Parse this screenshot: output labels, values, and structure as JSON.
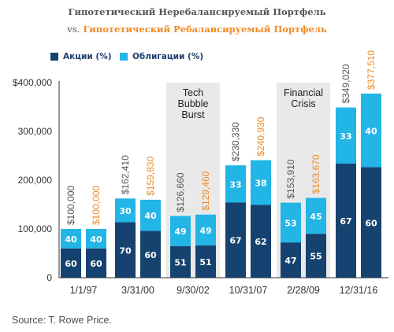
{
  "title_line1": "Гипотетический Неребалансируемый Портфель",
  "title_vs": "vs.",
  "title_line2": "Гипотетический Ребалансируемый Портфель",
  "source": "Source: T. Rowe Price.",
  "colors": {
    "stocks": "#16426f",
    "bonds": "#22b5e6",
    "orange": "#f08a24",
    "gray_value": "#555555",
    "band": "#e9e9e9"
  },
  "chart_data": {
    "type": "bar",
    "stacked": true,
    "categories": [
      "1/1/97",
      "3/31/00",
      "9/30/02",
      "10/31/07",
      "2/28/09",
      "12/31/16"
    ],
    "series": [
      {
        "name": "Акции (%)",
        "key": "stocks"
      },
      {
        "name": "Облигации (%)",
        "key": "bonds"
      }
    ],
    "y_ticks": [
      "$400,000",
      "300,000",
      "200,000",
      "100,000",
      "0"
    ],
    "ylim": [
      0,
      400000
    ],
    "groups": [
      {
        "category": "1/1/97",
        "nonrebalanced": {
          "total": 100000,
          "label": "$100,000",
          "stocks": 60,
          "bonds": 40
        },
        "rebalanced": {
          "total": 100000,
          "label": "$100,000",
          "stocks": 60,
          "bonds": 40
        }
      },
      {
        "category": "3/31/00",
        "nonrebalanced": {
          "total": 162410,
          "label": "$162,410",
          "stocks": 70,
          "bonds": 30
        },
        "rebalanced": {
          "total": 159830,
          "label": "$159,830",
          "stocks": 60,
          "bonds": 40
        }
      },
      {
        "category": "9/30/02",
        "nonrebalanced": {
          "total": 126660,
          "label": "$126,660",
          "stocks": 51,
          "bonds": 49
        },
        "rebalanced": {
          "total": 129460,
          "label": "$129,460",
          "stocks": 51,
          "bonds": 49
        }
      },
      {
        "category": "10/31/07",
        "nonrebalanced": {
          "total": 230330,
          "label": "$230,330",
          "stocks": 67,
          "bonds": 33
        },
        "rebalanced": {
          "total": 240930,
          "label": "$240,930",
          "stocks": 62,
          "bonds": 38
        }
      },
      {
        "category": "2/28/09",
        "nonrebalanced": {
          "total": 153910,
          "label": "$153,910",
          "stocks": 47,
          "bonds": 53
        },
        "rebalanced": {
          "total": 163670,
          "label": "$163,670",
          "stocks": 55,
          "bonds": 45
        }
      },
      {
        "category": "12/31/16",
        "nonrebalanced": {
          "total": 349020,
          "label": "$349,020",
          "stocks": 67,
          "bonds": 33
        },
        "rebalanced": {
          "total": 377510,
          "label": "$377,510",
          "stocks": 60,
          "bonds": 40
        }
      }
    ],
    "annotations": [
      {
        "text": "Tech\nBubble\nBurst",
        "category": "9/30/02"
      },
      {
        "text": "Financial\nCrisis",
        "category": "2/28/09"
      }
    ]
  }
}
